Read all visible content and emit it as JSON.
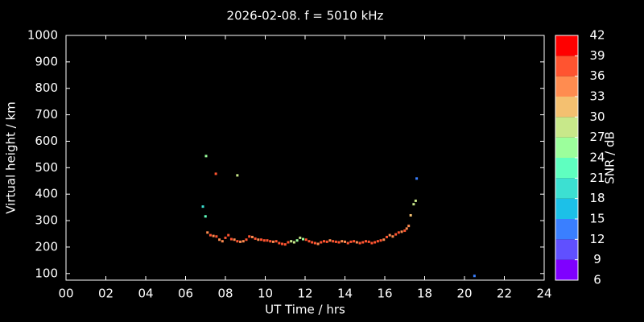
{
  "chart_data": {
    "type": "scatter",
    "title": "2026-02-08. f = 5010 kHz",
    "x_label": "UT Time / hrs",
    "y_label": "Virtual height / km",
    "xlim": [
      0,
      24
    ],
    "ylim": [
      75,
      1000
    ],
    "xticks": [
      {
        "value": 0,
        "label": "00"
      },
      {
        "value": 2,
        "label": "02"
      },
      {
        "value": 4,
        "label": "04"
      },
      {
        "value": 6,
        "label": "06"
      },
      {
        "value": 8,
        "label": "08"
      },
      10,
      12,
      14,
      16,
      18,
      20,
      22,
      24
    ],
    "yticks": [
      100,
      200,
      300,
      400,
      500,
      600,
      700,
      800,
      900,
      1000
    ],
    "colorbar": {
      "label": "SNR / dB",
      "lim": [
        6,
        42
      ],
      "ticks": [
        6,
        9,
        12,
        15,
        18,
        21,
        24,
        27,
        30,
        33,
        36,
        39,
        42
      ],
      "colors": [
        "#7f00ff",
        "#6050ff",
        "#3a7fff",
        "#1cc0e8",
        "#3ce0d2",
        "#5fffc0",
        "#9cff9c",
        "#c8e88a",
        "#f4c070",
        "#ff8c50",
        "#ff5430",
        "#ff0000"
      ]
    },
    "series": [
      {
        "x": [
          7.1,
          7.25,
          7.4,
          7.55,
          7.7,
          7.85,
          8.0,
          8.15,
          8.3,
          8.45,
          8.6,
          8.75,
          8.9,
          9.05,
          9.2,
          9.35,
          9.5,
          9.65,
          9.8,
          9.95,
          10.1,
          10.25,
          10.4,
          10.55,
          10.7,
          10.85,
          11.0,
          11.15,
          11.3,
          11.45,
          11.6,
          11.75,
          11.9,
          12.05,
          12.2,
          12.35,
          12.5,
          12.65,
          12.8,
          12.95,
          13.1,
          13.25,
          13.4,
          13.55,
          13.7,
          13.85,
          14.0,
          14.15,
          14.3,
          14.45,
          14.6,
          14.75,
          14.9,
          15.05,
          15.2,
          15.35,
          15.5,
          15.65,
          15.8,
          15.95,
          16.1,
          16.25,
          16.4,
          16.55,
          16.7,
          16.85,
          17.0,
          17.1,
          17.2,
          17.3,
          17.45,
          17.55,
          6.87,
          7.0,
          7.03,
          7.52,
          8.6,
          17.6,
          20.5
        ],
        "values": [
          255,
          245,
          242,
          240,
          228,
          222,
          235,
          245,
          230,
          228,
          222,
          220,
          222,
          228,
          240,
          238,
          232,
          228,
          228,
          225,
          225,
          222,
          220,
          222,
          215,
          212,
          210,
          218,
          222,
          218,
          225,
          235,
          230,
          228,
          222,
          218,
          215,
          212,
          218,
          222,
          220,
          225,
          222,
          220,
          218,
          222,
          220,
          215,
          220,
          222,
          218,
          215,
          218,
          222,
          220,
          215,
          218,
          222,
          225,
          228,
          238,
          245,
          240,
          248,
          255,
          258,
          262,
          270,
          280,
          320,
          362,
          375,
          353,
          316,
          544,
          477,
          471,
          459,
          91
        ],
        "snr": [
          33,
          36,
          35,
          36,
          35,
          33,
          36,
          37,
          36,
          35,
          36,
          35,
          33,
          36,
          37,
          35,
          36,
          35,
          37,
          36,
          36,
          37,
          35,
          36,
          37,
          38,
          36,
          37,
          27,
          28,
          26,
          27,
          25,
          36,
          37,
          38,
          36,
          35,
          37,
          36,
          37,
          35,
          36,
          37,
          36,
          35,
          33,
          36,
          37,
          36,
          35,
          37,
          36,
          37,
          36,
          38,
          36,
          37,
          36,
          35,
          36,
          35,
          33,
          36,
          37,
          35,
          36,
          35,
          34,
          31,
          29,
          27,
          20,
          22,
          25,
          38,
          29,
          14,
          12
        ]
      }
    ]
  }
}
